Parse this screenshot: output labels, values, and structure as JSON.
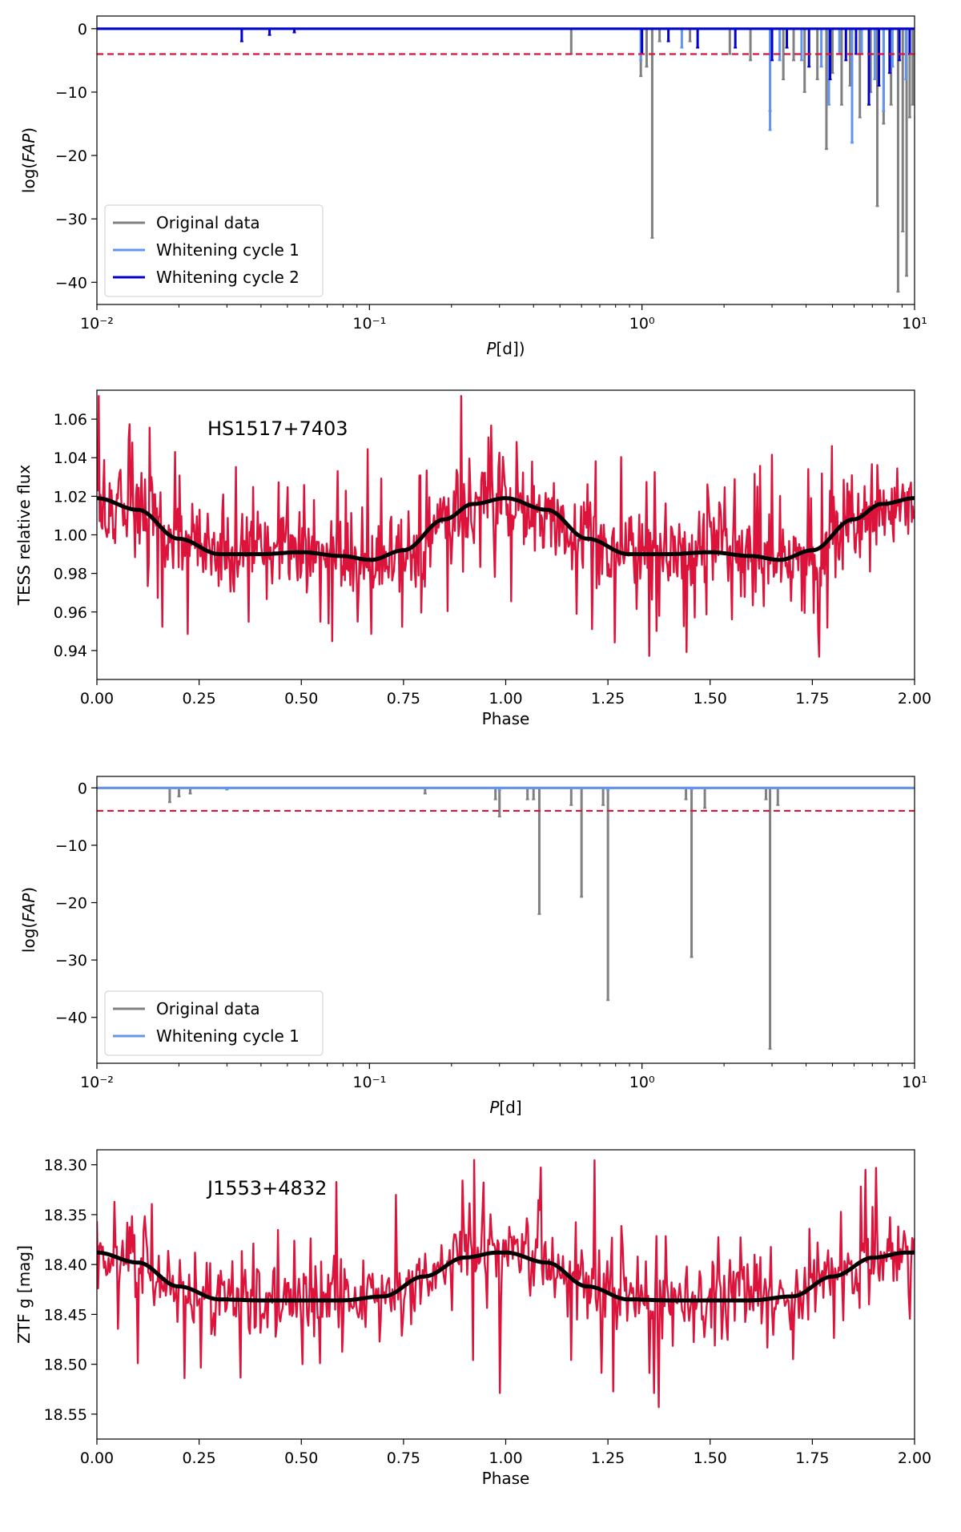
{
  "chart_data": [
    {
      "type": "line",
      "id": "fap-hs1517",
      "title": "",
      "xlabel": "P[d])",
      "ylabel": "log(FAP)",
      "xscale": "log",
      "xlim": [
        0.01,
        10
      ],
      "ylim": [
        -43.5,
        2
      ],
      "xticks": [
        {
          "value": 0.01,
          "label": "10⁻²"
        },
        {
          "value": 0.1,
          "label": "10⁻¹"
        },
        {
          "value": 1,
          "label": "10⁰"
        },
        {
          "value": 10,
          "label": "10¹"
        }
      ],
      "yticks": [
        0,
        -10,
        -20,
        -30,
        -40
      ],
      "threshold": -4,
      "legend_position": "lower-left",
      "series": [
        {
          "name": "Original data",
          "color": "#808080",
          "baseline": 0,
          "dips": [
            [
              0.55,
              -4
            ],
            [
              0.99,
              -7.5
            ],
            [
              1.04,
              -6
            ],
            [
              1.09,
              -33
            ],
            [
              1.16,
              -2
            ],
            [
              1.5,
              -2
            ],
            [
              2.1,
              -4
            ],
            [
              2.5,
              -5
            ],
            [
              2.95,
              -13
            ],
            [
              3.3,
              -8
            ],
            [
              3.6,
              -5
            ],
            [
              3.95,
              -10
            ],
            [
              4.4,
              -8
            ],
            [
              4.75,
              -19
            ],
            [
              5.0,
              -7
            ],
            [
              5.4,
              -12
            ],
            [
              5.8,
              -9
            ],
            [
              6.3,
              -14
            ],
            [
              6.9,
              -10
            ],
            [
              7.3,
              -28
            ],
            [
              7.7,
              -15
            ],
            [
              8.2,
              -12
            ],
            [
              8.7,
              -41.5
            ],
            [
              9.05,
              -32
            ],
            [
              9.35,
              -39
            ],
            [
              9.6,
              -14
            ],
            [
              9.85,
              -12
            ]
          ]
        },
        {
          "name": "Whitening cycle 1",
          "color": "#6495ed",
          "baseline": 0,
          "dips": [
            [
              0.99,
              -5
            ],
            [
              1.4,
              -3
            ],
            [
              2.95,
              -16
            ],
            [
              3.2,
              -5
            ],
            [
              3.85,
              -5
            ],
            [
              4.55,
              -6
            ],
            [
              4.85,
              -12
            ],
            [
              5.3,
              -4
            ],
            [
              5.9,
              -18
            ],
            [
              6.4,
              -4
            ],
            [
              7.15,
              -8
            ],
            [
              7.7,
              -13
            ],
            [
              8.3,
              -6
            ],
            [
              9.3,
              -8
            ]
          ]
        },
        {
          "name": "Whitening cycle 2",
          "color": "#0000cd",
          "baseline": 0,
          "dips": [
            [
              0.034,
              -2
            ],
            [
              0.043,
              -1
            ],
            [
              0.053,
              -0.6
            ],
            [
              1.0,
              -4
            ],
            [
              1.25,
              -2
            ],
            [
              1.6,
              -3
            ],
            [
              2.2,
              -3
            ],
            [
              3.0,
              -5
            ],
            [
              3.4,
              -3
            ],
            [
              4.1,
              -6
            ],
            [
              4.9,
              -8
            ],
            [
              5.6,
              -5
            ],
            [
              6.1,
              -4
            ],
            [
              6.8,
              -12
            ],
            [
              7.4,
              -9
            ],
            [
              8.1,
              -7
            ],
            [
              8.8,
              -5
            ],
            [
              9.6,
              -4
            ]
          ]
        }
      ]
    },
    {
      "type": "line",
      "id": "lc-hs1517",
      "title": "",
      "annotation": "HS1517+7403",
      "xlabel": "Phase",
      "ylabel": "TESS relative flux",
      "xlim": [
        0,
        2
      ],
      "ylim": [
        0.925,
        1.075
      ],
      "xticks": [
        "0.00",
        "0.25",
        "0.50",
        "0.75",
        "1.00",
        "1.25",
        "1.50",
        "1.75",
        "2.00"
      ],
      "yticks": [
        "0.94",
        "0.96",
        "0.98",
        "1.00",
        "1.02",
        "1.04",
        "1.06"
      ],
      "data_color": "#dc143c",
      "model_color": "#000000",
      "noise_seed": 7,
      "noise_sigma": 0.02,
      "noise_points": 900,
      "model_phase": [
        0,
        0.1,
        0.2,
        0.3,
        0.4,
        0.5,
        0.6,
        0.67,
        0.75,
        0.85,
        0.92,
        1.0
      ],
      "model_flux": [
        1.019,
        1.013,
        0.998,
        0.99,
        0.99,
        0.991,
        0.989,
        0.987,
        0.992,
        1.008,
        1.016,
        1.019
      ]
    },
    {
      "type": "line",
      "id": "fap-j1553",
      "title": "",
      "xlabel": "P[d]",
      "ylabel": "log(FAP)",
      "xscale": "log",
      "xlim": [
        0.01,
        10
      ],
      "ylim": [
        -48,
        2
      ],
      "xticks": [
        {
          "value": 0.01,
          "label": "10⁻²"
        },
        {
          "value": 0.1,
          "label": "10⁻¹"
        },
        {
          "value": 1,
          "label": "10⁰"
        },
        {
          "value": 10,
          "label": "10¹"
        }
      ],
      "yticks": [
        0,
        -10,
        -20,
        -30,
        -40
      ],
      "threshold": -4,
      "legend_position": "lower-left",
      "series": [
        {
          "name": "Original data",
          "color": "#808080",
          "baseline": 0,
          "dips": [
            [
              0.0185,
              -2.5
            ],
            [
              0.02,
              -1.5
            ],
            [
              0.022,
              -1
            ],
            [
              0.16,
              -1
            ],
            [
              0.3,
              -5
            ],
            [
              0.29,
              -2
            ],
            [
              0.38,
              -2
            ],
            [
              0.4,
              -2
            ],
            [
              0.42,
              -22
            ],
            [
              0.55,
              -3
            ],
            [
              0.6,
              -19
            ],
            [
              0.72,
              -3
            ],
            [
              0.75,
              -37
            ],
            [
              1.45,
              -2
            ],
            [
              1.52,
              -29.5
            ],
            [
              1.7,
              -3.5
            ],
            [
              2.85,
              -2
            ],
            [
              2.95,
              -45.5
            ],
            [
              3.15,
              -3
            ]
          ]
        },
        {
          "name": "Whitening cycle 1",
          "color": "#6495ed",
          "baseline": 0,
          "dips": [
            [
              0.03,
              -0.3
            ],
            [
              0.3,
              -0.4
            ],
            [
              0.75,
              -0.4
            ],
            [
              1.52,
              -0.3
            ]
          ]
        }
      ]
    },
    {
      "type": "line",
      "id": "lc-j1553",
      "title": "",
      "annotation": "J1553+4832",
      "xlabel": "Phase",
      "ylabel": "ZTF g [mag]",
      "xlim": [
        0,
        2
      ],
      "ylim": [
        18.575,
        18.285
      ],
      "y_inverted": true,
      "xticks": [
        "0.00",
        "0.25",
        "0.50",
        "0.75",
        "1.00",
        "1.25",
        "1.50",
        "1.75",
        "2.00"
      ],
      "yticks": [
        "18.30",
        "18.35",
        "18.40",
        "18.45",
        "18.50",
        "18.55"
      ],
      "data_color": "#dc143c",
      "model_color": "#000000",
      "noise_seed": 13,
      "noise_sigma": 0.035,
      "noise_points": 700,
      "model_phase": [
        0,
        0.1,
        0.2,
        0.3,
        0.4,
        0.5,
        0.6,
        0.7,
        0.8,
        0.9,
        0.98
      ],
      "model_mag": [
        18.388,
        18.398,
        18.422,
        18.435,
        18.436,
        18.436,
        18.436,
        18.432,
        18.412,
        18.393,
        18.388
      ]
    }
  ]
}
